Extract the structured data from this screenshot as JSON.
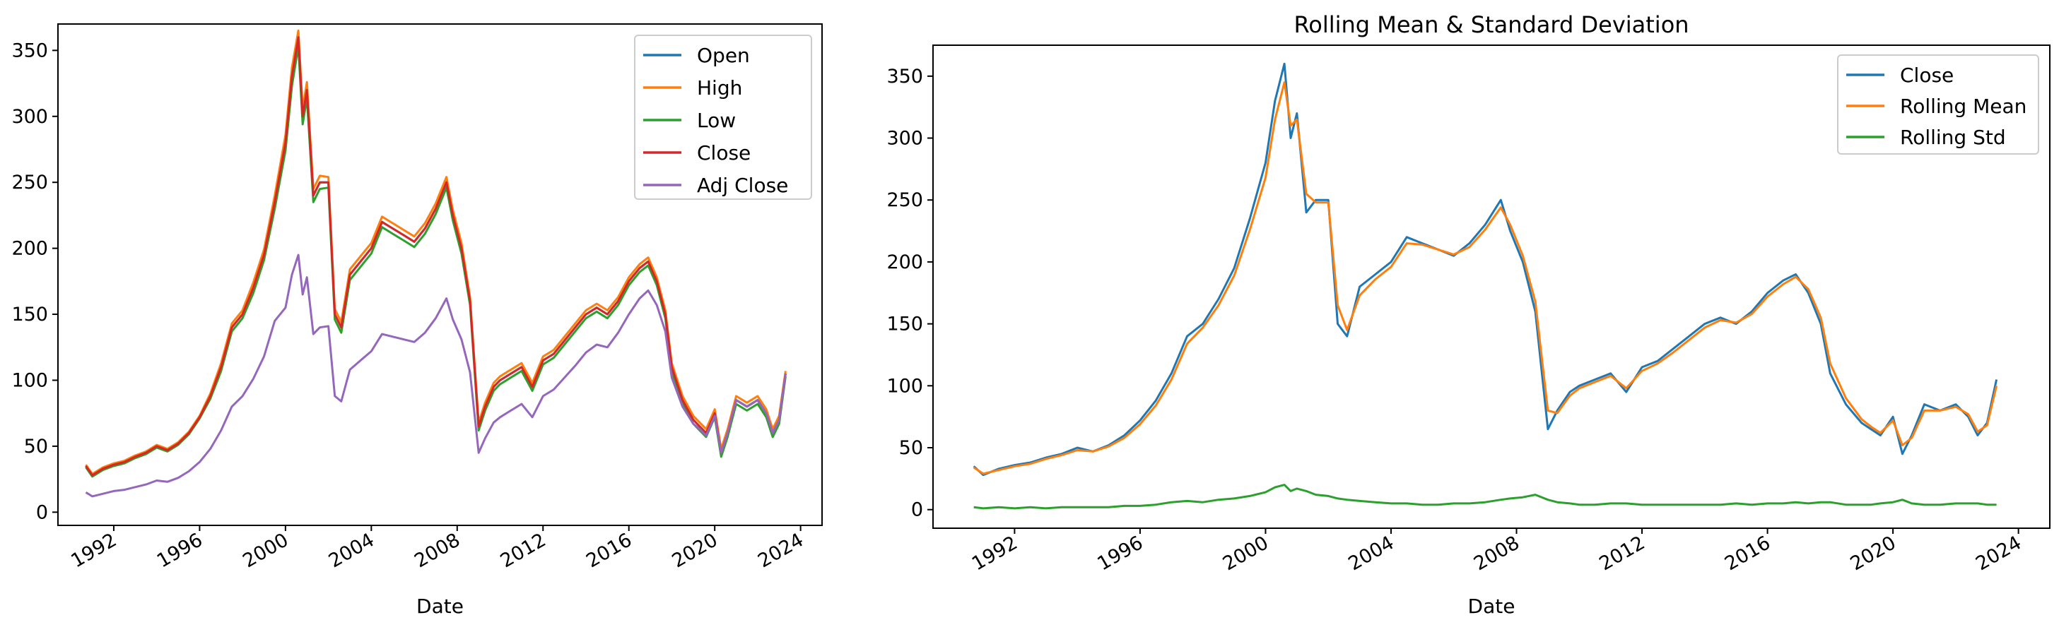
{
  "chart_data": [
    {
      "type": "line",
      "title": "",
      "xlabel": "Date",
      "ylabel": "",
      "xlim": [
        1989.4,
        2025.0
      ],
      "ylim": [
        -10,
        370
      ],
      "grid": false,
      "legend_position": "top-right",
      "x_ticks": [
        1992,
        1996,
        2000,
        2004,
        2008,
        2012,
        2016,
        2020,
        2024
      ],
      "x_tick_labels": [
        "1992",
        "1996",
        "2000",
        "2004",
        "2008",
        "2012",
        "2016",
        "2020",
        "2024"
      ],
      "y_ticks": [
        0,
        50,
        100,
        150,
        200,
        250,
        300,
        350
      ],
      "y_tick_labels": [
        "0",
        "50",
        "100",
        "150",
        "200",
        "250",
        "300",
        "350"
      ],
      "x": [
        1990.7,
        1991.0,
        1991.5,
        1992.0,
        1992.5,
        1993.0,
        1993.5,
        1994.0,
        1994.5,
        1995.0,
        1995.5,
        1996.0,
        1996.5,
        1997.0,
        1997.5,
        1998.0,
        1998.5,
        1999.0,
        1999.5,
        2000.0,
        2000.3,
        2000.6,
        2000.8,
        2001.0,
        2001.3,
        2001.6,
        2002.0,
        2002.3,
        2002.6,
        2003.0,
        2003.5,
        2004.0,
        2004.5,
        2005.0,
        2005.5,
        2006.0,
        2006.5,
        2007.0,
        2007.5,
        2007.8,
        2008.2,
        2008.6,
        2009.0,
        2009.3,
        2009.7,
        2010.0,
        2010.5,
        2011.0,
        2011.5,
        2012.0,
        2012.5,
        2013.0,
        2013.5,
        2014.0,
        2014.5,
        2015.0,
        2015.5,
        2016.0,
        2016.5,
        2016.9,
        2017.3,
        2017.7,
        2018.0,
        2018.5,
        2019.0,
        2019.3,
        2019.6,
        2020.0,
        2020.3,
        2020.6,
        2021.0,
        2021.5,
        2022.0,
        2022.4,
        2022.7,
        2023.0,
        2023.3
      ],
      "series": [
        {
          "name": "Open",
          "color": "#1f77b4",
          "values": [
            35,
            28,
            33,
            36,
            38,
            42,
            45,
            50,
            47,
            52,
            60,
            72,
            88,
            110,
            140,
            150,
            170,
            195,
            235,
            280,
            330,
            360,
            300,
            320,
            240,
            250,
            250,
            150,
            140,
            180,
            190,
            200,
            220,
            215,
            210,
            205,
            215,
            230,
            250,
            225,
            200,
            160,
            65,
            80,
            95,
            100,
            105,
            110,
            95,
            115,
            120,
            130,
            140,
            150,
            155,
            150,
            160,
            175,
            185,
            190,
            175,
            150,
            110,
            85,
            70,
            65,
            60,
            75,
            45,
            60,
            85,
            80,
            85,
            75,
            60,
            70,
            105
          ]
        },
        {
          "name": "High",
          "color": "#ff7f0e",
          "values": [
            36,
            29,
            34,
            37,
            39,
            43,
            46,
            51,
            48,
            53,
            61,
            73,
            90,
            113,
            143,
            153,
            174,
            199,
            240,
            286,
            337,
            365,
            306,
            326,
            245,
            255,
            254,
            154,
            144,
            184,
            194,
            204,
            224,
            219,
            214,
            209,
            219,
            234,
            254,
            229,
            204,
            163,
            68,
            83,
            98,
            103,
            108,
            113,
            98,
            118,
            123,
            133,
            143,
            153,
            158,
            153,
            163,
            178,
            188,
            193,
            178,
            153,
            113,
            88,
            73,
            68,
            63,
            78,
            48,
            63,
            88,
            83,
            88,
            78,
            63,
            73,
            107
          ]
        },
        {
          "name": "Low",
          "color": "#2ca02c",
          "values": [
            34,
            27,
            32,
            35,
            37,
            41,
            44,
            49,
            46,
            51,
            59,
            71,
            86,
            107,
            137,
            147,
            166,
            191,
            230,
            274,
            323,
            353,
            294,
            314,
            235,
            245,
            246,
            146,
            136,
            176,
            186,
            196,
            216,
            211,
            206,
            201,
            211,
            226,
            246,
            221,
            196,
            157,
            62,
            77,
            92,
            97,
            102,
            107,
            92,
            112,
            117,
            127,
            137,
            147,
            152,
            147,
            157,
            172,
            182,
            187,
            172,
            147,
            107,
            82,
            67,
            62,
            57,
            72,
            42,
            57,
            82,
            77,
            82,
            72,
            57,
            67,
            103
          ]
        },
        {
          "name": "Close",
          "color": "#d62728",
          "values": [
            35,
            28,
            33,
            36,
            38,
            42,
            45,
            50,
            47,
            52,
            60,
            72,
            88,
            110,
            140,
            150,
            170,
            195,
            235,
            280,
            330,
            360,
            300,
            320,
            240,
            250,
            250,
            150,
            140,
            180,
            190,
            200,
            220,
            215,
            210,
            205,
            215,
            230,
            250,
            225,
            200,
            160,
            65,
            80,
            95,
            100,
            105,
            110,
            95,
            115,
            120,
            130,
            140,
            150,
            155,
            150,
            160,
            175,
            185,
            190,
            175,
            150,
            110,
            85,
            70,
            65,
            60,
            75,
            45,
            60,
            85,
            80,
            85,
            75,
            60,
            70,
            105
          ]
        },
        {
          "name": "Adj Close",
          "color": "#9467bd",
          "values": [
            15,
            12,
            14,
            16,
            17,
            19,
            21,
            24,
            23,
            26,
            31,
            38,
            48,
            62,
            80,
            88,
            101,
            118,
            145,
            155,
            180,
            195,
            165,
            178,
            135,
            140,
            141,
            88,
            84,
            108,
            115,
            122,
            135,
            133,
            131,
            129,
            136,
            147,
            162,
            146,
            131,
            106,
            45,
            56,
            68,
            72,
            77,
            82,
            72,
            88,
            93,
            102,
            111,
            121,
            127,
            125,
            136,
            150,
            162,
            168,
            157,
            137,
            102,
            80,
            67,
            63,
            58,
            73,
            45,
            60,
            85,
            80,
            85,
            75,
            60,
            70,
            105
          ]
        }
      ]
    },
    {
      "type": "line",
      "title": "Rolling Mean & Standard Deviation",
      "xlabel": "Date",
      "ylabel": "",
      "xlim": [
        1989.4,
        2025.0
      ],
      "ylim": [
        -15,
        375
      ],
      "grid": false,
      "legend_position": "top-right",
      "x_ticks": [
        1992,
        1996,
        2000,
        2004,
        2008,
        2012,
        2016,
        2020,
        2024
      ],
      "x_tick_labels": [
        "1992",
        "1996",
        "2000",
        "2004",
        "2008",
        "2012",
        "2016",
        "2020",
        "2024"
      ],
      "y_ticks": [
        0,
        50,
        100,
        150,
        200,
        250,
        300,
        350
      ],
      "y_tick_labels": [
        "0",
        "50",
        "100",
        "150",
        "200",
        "250",
        "300",
        "350"
      ],
      "x": [
        1990.7,
        1991.0,
        1991.5,
        1992.0,
        1992.5,
        1993.0,
        1993.5,
        1994.0,
        1994.5,
        1995.0,
        1995.5,
        1996.0,
        1996.5,
        1997.0,
        1997.5,
        1998.0,
        1998.5,
        1999.0,
        1999.5,
        2000.0,
        2000.3,
        2000.6,
        2000.8,
        2001.0,
        2001.3,
        2001.6,
        2002.0,
        2002.3,
        2002.6,
        2003.0,
        2003.5,
        2004.0,
        2004.5,
        2005.0,
        2005.5,
        2006.0,
        2006.5,
        2007.0,
        2007.5,
        2007.8,
        2008.2,
        2008.6,
        2009.0,
        2009.3,
        2009.7,
        2010.0,
        2010.5,
        2011.0,
        2011.5,
        2012.0,
        2012.5,
        2013.0,
        2013.5,
        2014.0,
        2014.5,
        2015.0,
        2015.5,
        2016.0,
        2016.5,
        2016.9,
        2017.3,
        2017.7,
        2018.0,
        2018.5,
        2019.0,
        2019.3,
        2019.6,
        2020.0,
        2020.3,
        2020.6,
        2021.0,
        2021.5,
        2022.0,
        2022.4,
        2022.7,
        2023.0,
        2023.3
      ],
      "series": [
        {
          "name": "Close",
          "color": "#1f77b4",
          "values": [
            35,
            28,
            33,
            36,
            38,
            42,
            45,
            50,
            47,
            52,
            60,
            72,
            88,
            110,
            140,
            150,
            170,
            195,
            235,
            280,
            330,
            360,
            300,
            320,
            240,
            250,
            250,
            150,
            140,
            180,
            190,
            200,
            220,
            215,
            210,
            205,
            215,
            230,
            250,
            225,
            200,
            160,
            65,
            80,
            95,
            100,
            105,
            110,
            95,
            115,
            120,
            130,
            140,
            150,
            155,
            150,
            160,
            175,
            185,
            190,
            175,
            150,
            110,
            85,
            70,
            65,
            60,
            75,
            45,
            60,
            85,
            80,
            85,
            75,
            60,
            70,
            105
          ]
        },
        {
          "name": "Rolling Mean",
          "color": "#ff7f0e",
          "values": [
            34,
            29,
            32,
            35,
            37,
            41,
            44,
            48,
            47,
            51,
            58,
            69,
            84,
            105,
            134,
            147,
            165,
            189,
            226,
            268,
            315,
            345,
            310,
            315,
            255,
            248,
            248,
            165,
            145,
            173,
            186,
            196,
            215,
            214,
            210,
            206,
            212,
            226,
            244,
            230,
            205,
            168,
            80,
            78,
            92,
            98,
            103,
            108,
            98,
            112,
            118,
            127,
            137,
            147,
            153,
            151,
            158,
            172,
            182,
            188,
            178,
            155,
            118,
            90,
            73,
            67,
            62,
            72,
            52,
            58,
            80,
            80,
            83,
            77,
            63,
            68,
            100
          ]
        },
        {
          "name": "Rolling Std",
          "color": "#2ca02c",
          "values": [
            2,
            1,
            2,
            1,
            2,
            1,
            2,
            2,
            2,
            2,
            3,
            3,
            4,
            6,
            7,
            6,
            8,
            9,
            11,
            14,
            18,
            20,
            15,
            17,
            15,
            12,
            11,
            9,
            8,
            7,
            6,
            5,
            5,
            4,
            4,
            5,
            5,
            6,
            8,
            9,
            10,
            12,
            8,
            6,
            5,
            4,
            4,
            5,
            5,
            4,
            4,
            4,
            4,
            4,
            4,
            5,
            4,
            5,
            5,
            6,
            5,
            6,
            6,
            4,
            4,
            4,
            5,
            6,
            8,
            5,
            4,
            4,
            5,
            5,
            5,
            4,
            4
          ]
        }
      ]
    }
  ]
}
